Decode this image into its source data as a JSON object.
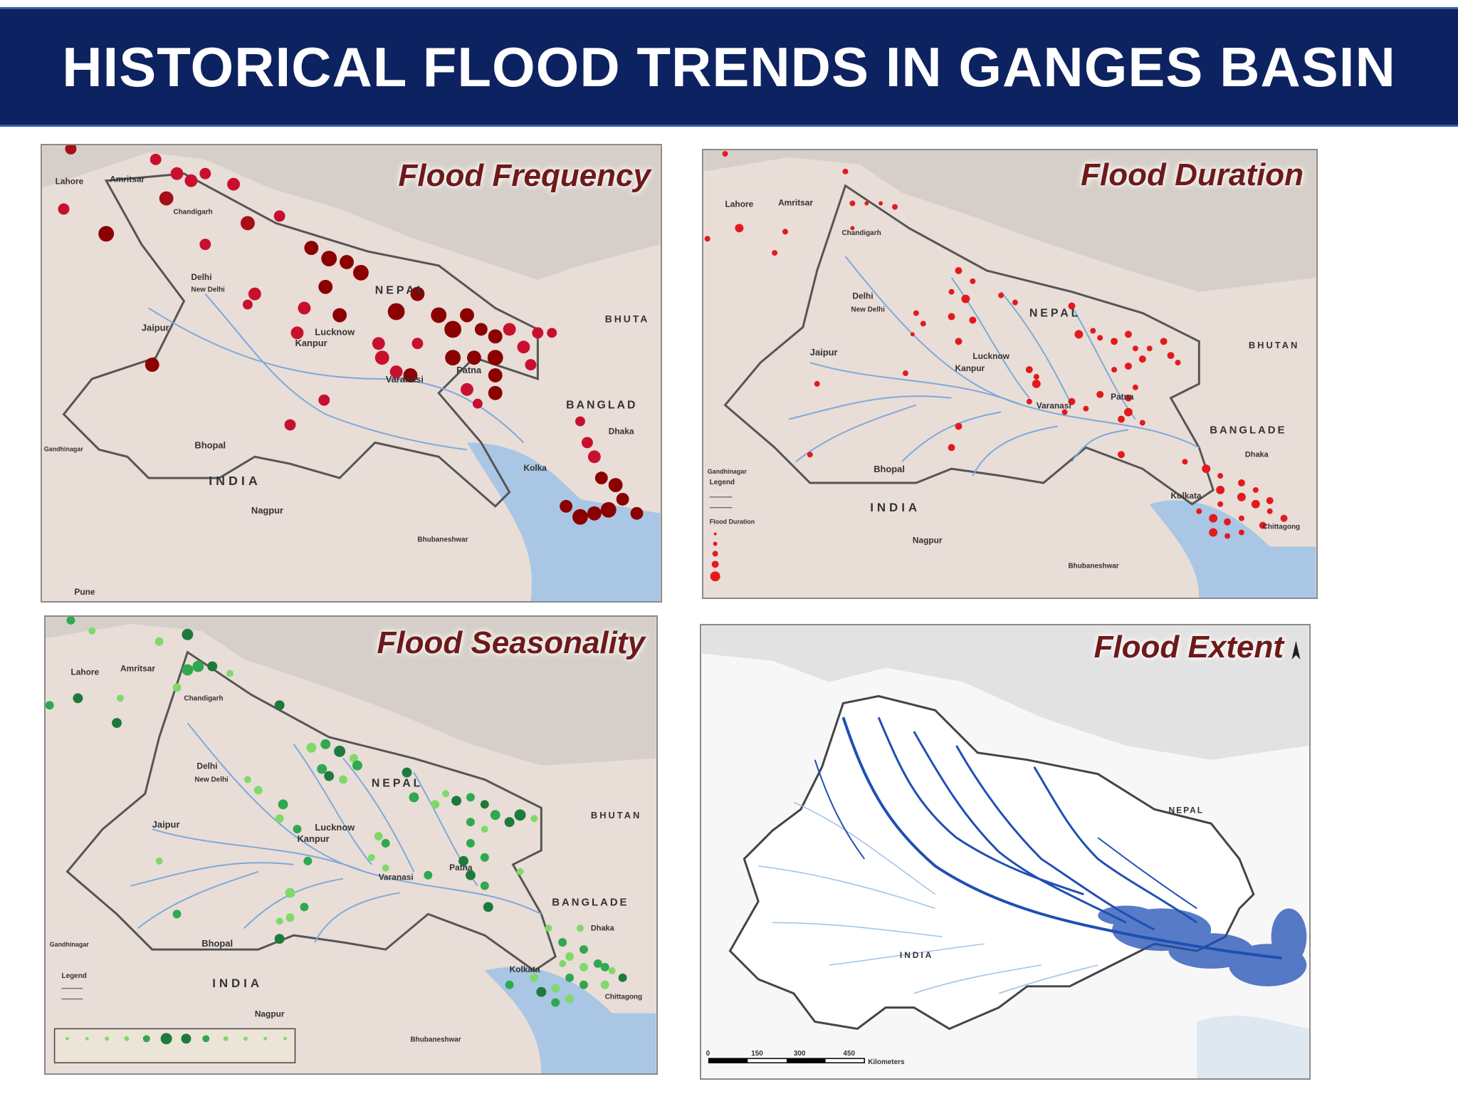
{
  "header": {
    "title": "HISTORICAL FLOOD TRENDS IN GANGES BASIN"
  },
  "panels": [
    {
      "title": "Flood Frequency",
      "labels": {
        "lahore": "Lahore",
        "amritsar": "Amritsar",
        "chandigarh": "Chandigarh",
        "delhi": "Delhi",
        "newdelhi": "New Delhi",
        "jaipur": "Jaipur",
        "lucknow": "Lucknow",
        "kanpur": "Kanpur",
        "varanasi": "Varanasi",
        "patna": "Patna",
        "nepal": "NEPAL",
        "bhutan": "BHUTA",
        "bangladesh": "BANGLAD",
        "bhopal": "Bhopal",
        "india": "INDIA",
        "nagpur": "Nagpur",
        "kolkata": "Kolka",
        "dhaka": "Dhaka",
        "bhubaneshwar": "Bhubaneshwar",
        "pune": "Pune",
        "gandhinagar": "Gandhinagar"
      }
    },
    {
      "title": "Flood Duration",
      "labels": {
        "lahore": "Lahore",
        "amritsar": "Amritsar",
        "chandigarh": "Chandigarh",
        "delhi": "Delhi",
        "newdelhi": "New Delhi",
        "jaipur": "Jaipur",
        "lucknow": "Lucknow",
        "kanpur": "Kanpur",
        "varanasi": "Varanasi",
        "patna": "Patna",
        "nepal": "NEPAL",
        "bhutan": "BHUTAN",
        "bangladesh": "BANGLADE",
        "bhopal": "Bhopal",
        "india": "INDIA",
        "nagpur": "Nagpur",
        "kolkata": "Kolkata",
        "dhaka": "Dhaka",
        "bhubaneshwar": "Bhubaneshwar",
        "chittagong": "Chittagong",
        "gandhinagar": "Gandhinagar",
        "legend": "Legend",
        "floodduration": "Flood Duration"
      }
    },
    {
      "title": "Flood Seasonality",
      "labels": {
        "lahore": "Lahore",
        "amritsar": "Amritsar",
        "chandigarh": "Chandigarh",
        "delhi": "Delhi",
        "newdelhi": "New Delhi",
        "jaipur": "Jaipur",
        "lucknow": "Lucknow",
        "kanpur": "Kanpur",
        "varanasi": "Varanasi",
        "patna": "Patna",
        "nepal": "NEPAL",
        "bhutan": "BHUTAN",
        "bangladesh": "BANGLADE",
        "bhopal": "Bhopal",
        "india": "INDIA",
        "nagpur": "Nagpur",
        "kolkata": "Kolkata",
        "dhaka": "Dhaka",
        "bhubaneshwar": "Bhubaneshwar",
        "chittagong": "Chittagong",
        "gandhinagar": "Gandhinagar",
        "legend": "Legend"
      }
    },
    {
      "title": "Flood Extent",
      "labels": {
        "nepal": "NEPAL",
        "india": "INDIA",
        "scale0": "0",
        "scale1": "150",
        "scale2": "300",
        "scale3": "450",
        "kilometers": "Kilometers"
      }
    }
  ],
  "colors": {
    "header_bg": "#0d2260",
    "title_text": "#6e1a1a",
    "land": "#e9ddd8",
    "water": "#a9c6e4",
    "river": "#5f9bd5",
    "frequency_dot": "#a50f15",
    "seasonality_dot": "#2fa84f",
    "extent_flood": "#1f4fb5"
  }
}
